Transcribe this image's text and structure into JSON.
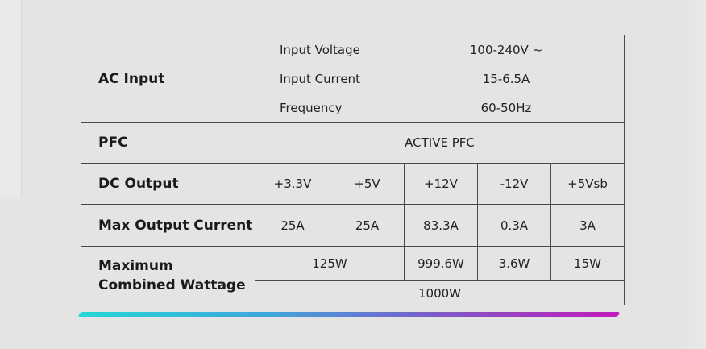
{
  "table": {
    "ac_input": {
      "label": "AC Input",
      "rows": [
        {
          "name": "Input Voltage",
          "value": "100-240V ~"
        },
        {
          "name": "Input Current",
          "value": "15-6.5A"
        },
        {
          "name": "Frequency",
          "value": "60-50Hz"
        }
      ]
    },
    "pfc": {
      "label": "PFC",
      "value": "ACTIVE PFC"
    },
    "dc_output": {
      "label": "DC Output",
      "rails": [
        "+3.3V",
        "+5V",
        "+12V",
        "-12V",
        "+5Vsb"
      ]
    },
    "max_output_current": {
      "label": "Max Output Current",
      "values": [
        "25A",
        "25A",
        "83.3A",
        "0.3A",
        "3A"
      ]
    },
    "max_combined_wattage": {
      "label": "Maximum Combined Wattage",
      "combined_33_5": "125W",
      "v12": "999.6W",
      "neg12": "3.6W",
      "v5sb": "15W",
      "total": "1000W"
    }
  },
  "colors": {
    "stripe_start": "#25d6d6",
    "stripe_end": "#c21ab8",
    "border": "#4a4a4a"
  }
}
